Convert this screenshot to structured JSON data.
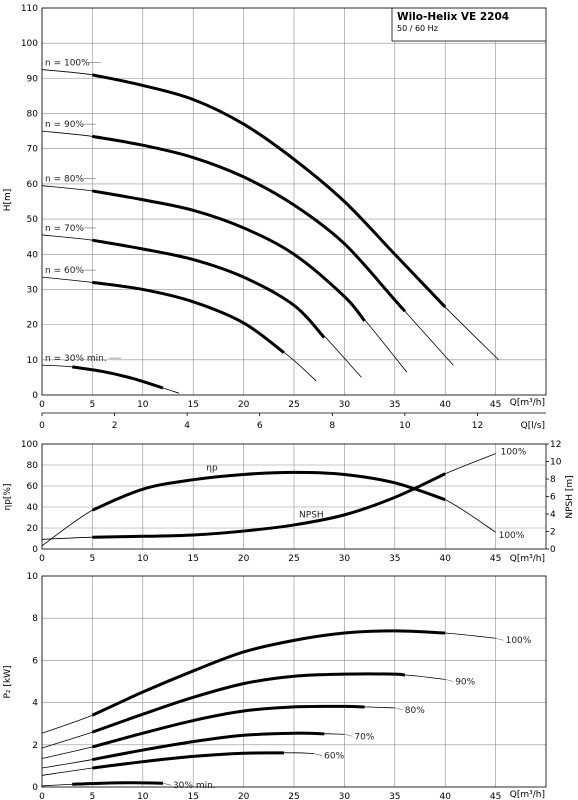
{
  "header": {
    "title": "Wilo-Helix VE 2204",
    "subtitle": "50 / 60 Hz"
  },
  "axes": {
    "q_m3h_label": "Q[m³/h]",
    "q_ls_label": "Q[l/s]",
    "h_label": "H[m]",
    "eta_label": "ηp[%]",
    "npsh_label": "NPSH [m]",
    "p2_label": "P₂ [kW]"
  },
  "chart_data": [
    {
      "type": "line",
      "name": "head",
      "xlabel": "Q[m³/h]",
      "x2label": "Q[l/s]",
      "ylabel": "H[m]",
      "xlim": [
        0,
        50
      ],
      "ylim": [
        0,
        110
      ],
      "xticks": [
        0,
        5,
        10,
        15,
        20,
        25,
        30,
        35,
        40,
        45
      ],
      "x2ticks": [
        0,
        2,
        4,
        6,
        8,
        10,
        12
      ],
      "yticks": [
        0,
        10,
        20,
        30,
        40,
        50,
        60,
        70,
        80,
        90,
        100,
        110
      ],
      "grid": true,
      "series": [
        {
          "name": "n = 100%",
          "x": [
            0,
            5,
            10,
            15,
            20,
            25,
            30,
            35,
            40,
            45.3
          ],
          "y": [
            92.5,
            91,
            88,
            84,
            77,
            67,
            55,
            40,
            25,
            10
          ],
          "bold_range": [
            5,
            40
          ]
        },
        {
          "name": "n = 90%",
          "x": [
            0,
            5,
            10,
            15,
            20,
            25,
            30,
            35,
            40.8
          ],
          "y": [
            75,
            73.5,
            71,
            67.5,
            62,
            54,
            43,
            27,
            8.5
          ],
          "bold_range": [
            5,
            36
          ]
        },
        {
          "name": "n = 80%",
          "x": [
            0,
            5,
            10,
            15,
            20,
            25,
            30,
            36.2
          ],
          "y": [
            59.5,
            58,
            55.5,
            52.5,
            47.5,
            40,
            28,
            6.5
          ],
          "bold_range": [
            5,
            32
          ]
        },
        {
          "name": "n = 70%",
          "x": [
            0,
            5,
            10,
            15,
            20,
            25,
            31.7
          ],
          "y": [
            45.5,
            44,
            41.5,
            38.5,
            33.5,
            25.5,
            5
          ],
          "bold_range": [
            5,
            28
          ]
        },
        {
          "name": "n = 60%",
          "x": [
            0,
            5,
            10,
            15,
            20,
            24.5,
            27.2
          ],
          "y": [
            33.5,
            32,
            30,
            26.5,
            20.5,
            11,
            4
          ],
          "bold_range": [
            5,
            24
          ]
        },
        {
          "name": "n = 30% min.",
          "x": [
            0,
            3,
            6,
            9,
            12,
            13.6
          ],
          "y": [
            8.5,
            8,
            6.7,
            4.7,
            2,
            0.5
          ],
          "bold_range": [
            3,
            12
          ]
        }
      ]
    },
    {
      "type": "line",
      "name": "efficiency-npsh",
      "xlabel": "Q[m³/h]",
      "ylabel": "ηp[%]",
      "y2label": "NPSH [m]",
      "xlim": [
        0,
        50
      ],
      "ylim": [
        0,
        100
      ],
      "y2lim": [
        0,
        12
      ],
      "xticks": [
        0,
        5,
        10,
        15,
        20,
        25,
        30,
        35,
        40,
        45
      ],
      "yticks": [
        0,
        20,
        40,
        60,
        80,
        100
      ],
      "y2ticks": [
        0,
        2,
        4,
        6,
        8,
        10,
        12
      ],
      "grid": true,
      "annotations": [
        "ηp",
        "NPSH",
        "100%",
        "100%"
      ],
      "series": [
        {
          "name": "ηp",
          "axis": "left",
          "x": [
            0,
            5,
            10,
            15,
            20,
            25,
            30,
            35,
            40,
            45
          ],
          "y": [
            3,
            37,
            57,
            66,
            71,
            73,
            71,
            63,
            47,
            16
          ],
          "bold_range": [
            5,
            40
          ]
        },
        {
          "name": "NPSH",
          "axis": "right",
          "x": [
            0,
            5,
            10,
            15,
            20,
            25,
            30,
            35,
            40,
            45
          ],
          "y": [
            1.1,
            1.35,
            1.45,
            1.6,
            2.05,
            2.75,
            3.9,
            5.9,
            8.6,
            10.9
          ],
          "bold_range": [
            5,
            40
          ]
        }
      ]
    },
    {
      "type": "line",
      "name": "power",
      "xlabel": "Q[m³/h]",
      "ylabel": "P₂ [kW]",
      "xlim": [
        0,
        50
      ],
      "ylim": [
        0,
        10
      ],
      "xticks": [
        0,
        5,
        10,
        15,
        20,
        25,
        30,
        35,
        40,
        45
      ],
      "yticks": [
        0,
        2,
        4,
        6,
        8,
        10
      ],
      "grid": true,
      "series": [
        {
          "name": "100%",
          "x": [
            0,
            5,
            10,
            15,
            20,
            25,
            30,
            35,
            40,
            45
          ],
          "y": [
            2.55,
            3.4,
            4.5,
            5.5,
            6.4,
            6.95,
            7.3,
            7.4,
            7.3,
            7.05
          ],
          "bold_range": [
            5,
            40
          ]
        },
        {
          "name": "90%",
          "x": [
            0,
            5,
            10,
            15,
            20,
            25,
            30,
            35,
            40
          ],
          "y": [
            1.85,
            2.6,
            3.45,
            4.25,
            4.9,
            5.25,
            5.35,
            5.35,
            5.1
          ],
          "bold_range": [
            5,
            36
          ]
        },
        {
          "name": "80%",
          "x": [
            0,
            5,
            10,
            15,
            20,
            25,
            30,
            35
          ],
          "y": [
            1.35,
            1.9,
            2.55,
            3.15,
            3.6,
            3.8,
            3.82,
            3.75
          ],
          "bold_range": [
            5,
            32
          ]
        },
        {
          "name": "70%",
          "x": [
            0,
            5,
            10,
            15,
            20,
            25,
            30
          ],
          "y": [
            0.9,
            1.3,
            1.75,
            2.15,
            2.45,
            2.55,
            2.5
          ],
          "bold_range": [
            5,
            28
          ]
        },
        {
          "name": "60%",
          "x": [
            0,
            5,
            10,
            15,
            20,
            25,
            27
          ],
          "y": [
            0.55,
            0.9,
            1.2,
            1.45,
            1.6,
            1.62,
            1.58
          ],
          "bold_range": [
            5,
            24
          ]
        },
        {
          "name": "30% min.",
          "x": [
            0,
            3,
            6,
            9,
            12
          ],
          "y": [
            0.05,
            0.13,
            0.18,
            0.2,
            0.18
          ],
          "bold_range": [
            3,
            12
          ]
        }
      ]
    }
  ]
}
